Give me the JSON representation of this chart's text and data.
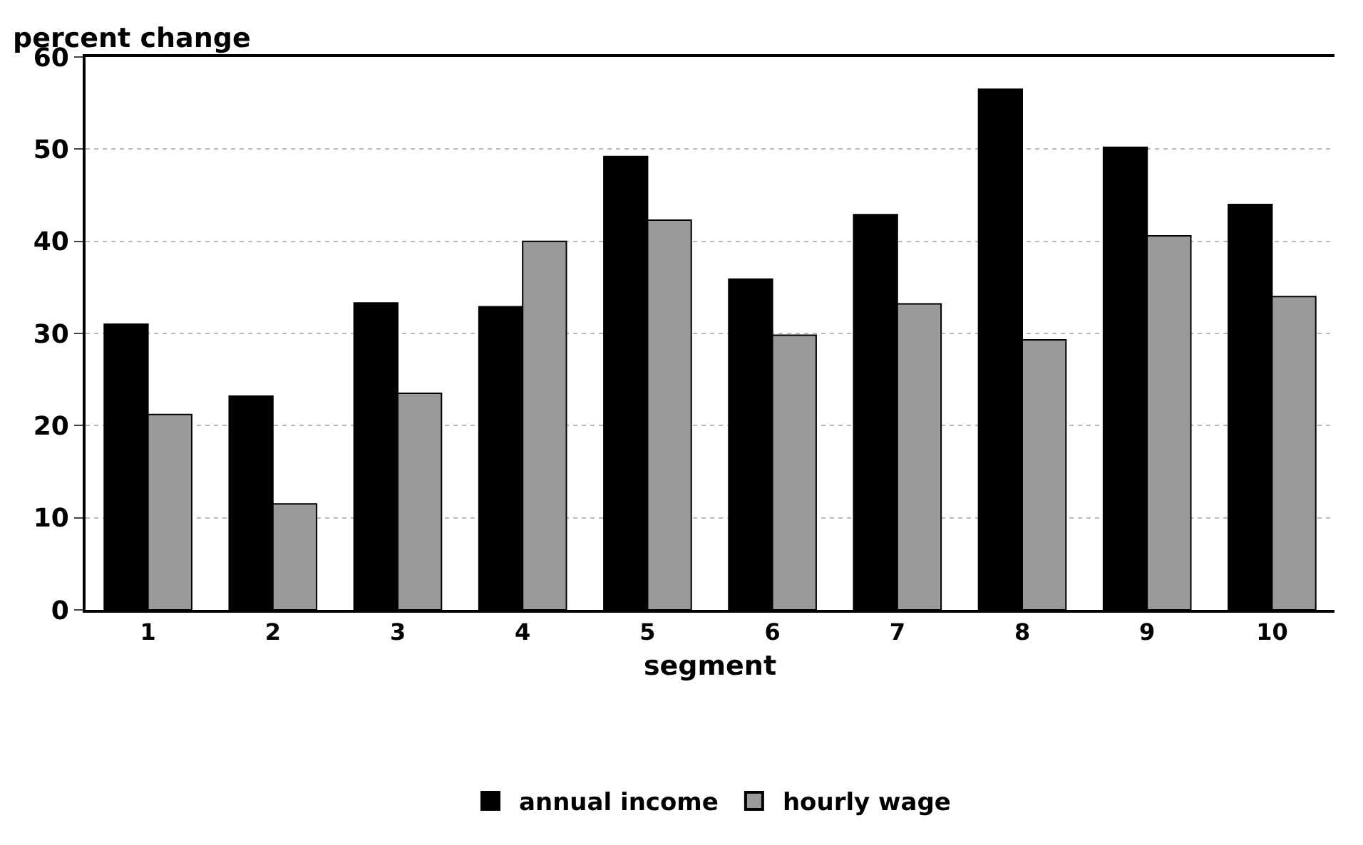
{
  "chart_data": {
    "type": "bar",
    "ylabel": "percent change",
    "xlabel": "segment",
    "categories": [
      "1",
      "2",
      "3",
      "4",
      "5",
      "6",
      "7",
      "8",
      "9",
      "10"
    ],
    "series": [
      {
        "name": "annual income",
        "color": "#000000",
        "values": [
          31.0,
          23.2,
          33.3,
          32.9,
          49.2,
          35.9,
          42.9,
          56.5,
          50.2,
          44.0
        ]
      },
      {
        "name": "hourly wage",
        "color": "#9a9a9a",
        "values": [
          21.2,
          11.5,
          23.5,
          40.0,
          42.3,
          29.8,
          33.2,
          29.3,
          40.6,
          34.0
        ]
      }
    ],
    "ylim": [
      0,
      60
    ],
    "yticks": [
      0,
      10,
      20,
      30,
      40,
      50,
      60
    ],
    "grid": "y",
    "legend": "bottom"
  }
}
